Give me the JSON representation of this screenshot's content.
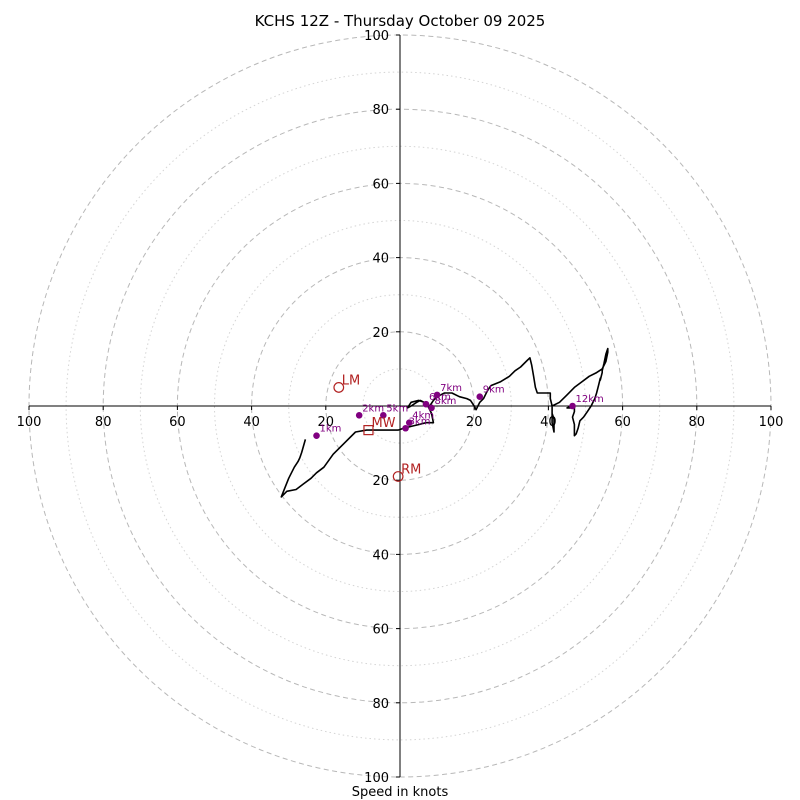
{
  "chart_data": {
    "type": "hodograph",
    "title": "KCHS 12Z - Thursday October 09 2025",
    "xlabel": "Speed in knots",
    "units": "knots",
    "max_speed": 100,
    "ring_labels": [
      "20",
      "40",
      "60",
      "80",
      "100"
    ],
    "rings_major": [
      20,
      40,
      60,
      80,
      100
    ],
    "rings_minor": [
      10,
      30,
      50,
      70,
      90
    ],
    "axis_tick_values": {
      "x_left": [
        100,
        80,
        60,
        40,
        20
      ],
      "x_right": [
        20,
        40,
        60,
        80,
        100
      ],
      "y_up": [
        20,
        40,
        60,
        80,
        100
      ],
      "y_down": [
        20,
        40,
        60,
        80,
        100
      ]
    },
    "trace": [
      [
        -25.5,
        -9
      ],
      [
        -26.5,
        -12.5
      ],
      [
        -27,
        -14
      ],
      [
        -27.5,
        -15
      ],
      [
        -28.5,
        -16.5
      ],
      [
        -30,
        -19.5
      ],
      [
        -31,
        -22
      ],
      [
        -32,
        -24.5
      ],
      [
        -30.5,
        -23
      ],
      [
        -28,
        -22.5
      ],
      [
        -26,
        -21
      ],
      [
        -24,
        -19.5
      ],
      [
        -22.5,
        -18
      ],
      [
        -20.5,
        -16.5
      ],
      [
        -18,
        -13
      ],
      [
        -15,
        -10
      ],
      [
        -12,
        -7
      ],
      [
        -9,
        -6.5
      ],
      [
        -5.5,
        -6.5
      ],
      [
        -3,
        -6.5
      ],
      [
        -0.5,
        -6.5
      ],
      [
        1,
        -6
      ],
      [
        3,
        -5.5
      ],
      [
        5,
        -5
      ],
      [
        7,
        -4.5
      ],
      [
        9,
        -4.5
      ],
      [
        8.5,
        -2
      ],
      [
        8,
        -1
      ],
      [
        7.5,
        0
      ],
      [
        6.5,
        1
      ],
      [
        5.5,
        1.5
      ],
      [
        4.5,
        1
      ],
      [
        3,
        0
      ],
      [
        2,
        -0.5
      ],
      [
        3,
        1
      ],
      [
        5,
        1.5
      ],
      [
        6.5,
        1
      ],
      [
        8,
        0
      ],
      [
        9,
        1.5
      ],
      [
        10,
        2.5
      ],
      [
        12,
        3.5
      ],
      [
        14,
        3.5
      ],
      [
        16,
        2.5
      ],
      [
        18,
        2
      ],
      [
        19,
        1.5
      ],
      [
        20,
        0
      ],
      [
        20.5,
        -1
      ],
      [
        21,
        0
      ],
      [
        21.5,
        1
      ],
      [
        22.5,
        2
      ],
      [
        23.5,
        4
      ],
      [
        24.5,
        5.5
      ],
      [
        27,
        6.5
      ],
      [
        29.5,
        8
      ],
      [
        31,
        9.5
      ],
      [
        32.5,
        10.5
      ],
      [
        34,
        12
      ],
      [
        35,
        13
      ],
      [
        35.5,
        11
      ],
      [
        36,
        8
      ],
      [
        36.5,
        5
      ],
      [
        37,
        3.5
      ],
      [
        38.5,
        3.5
      ],
      [
        40.5,
        3.5
      ],
      [
        40.5,
        2
      ],
      [
        41,
        0
      ],
      [
        41,
        -2
      ],
      [
        41.5,
        -3.5
      ],
      [
        41.5,
        -7
      ],
      [
        41,
        -4.5
      ],
      [
        41,
        -2
      ],
      [
        41,
        0
      ],
      [
        43,
        1
      ],
      [
        45,
        3
      ],
      [
        47,
        5
      ],
      [
        49,
        6.5
      ],
      [
        51,
        8
      ],
      [
        53,
        9
      ],
      [
        54.5,
        10
      ],
      [
        55.5,
        12
      ],
      [
        56,
        14.5
      ],
      [
        56,
        15.5
      ],
      [
        55.5,
        14
      ],
      [
        55,
        11.5
      ],
      [
        54.5,
        9.5
      ],
      [
        54.5,
        9
      ],
      [
        54,
        7
      ],
      [
        54,
        7.5
      ],
      [
        53.5,
        5.5
      ],
      [
        53,
        3.5
      ],
      [
        52.5,
        2
      ],
      [
        51.5,
        0
      ],
      [
        50.5,
        -1.5
      ],
      [
        49.5,
        -3
      ],
      [
        48.5,
        -4
      ],
      [
        48,
        -6
      ],
      [
        47.5,
        -7.5
      ],
      [
        47,
        -8
      ],
      [
        47,
        -7
      ],
      [
        47,
        -5
      ],
      [
        46.5,
        -3
      ],
      [
        47,
        -1.5
      ],
      [
        47,
        0
      ],
      [
        47,
        -0.5
      ],
      [
        46,
        -0.5
      ],
      [
        45,
        -0.5
      ],
      [
        46,
        0
      ]
    ],
    "height_markers": [
      {
        "label": "1km",
        "u": -22.5,
        "v": -8
      },
      {
        "label": "2km",
        "u": -11,
        "v": -2.5
      },
      {
        "label": "5km",
        "u": -4.5,
        "v": -2.5
      },
      {
        "label": "3km",
        "u": 1.5,
        "v": -6
      },
      {
        "label": "4km",
        "u": 2.5,
        "v": -4.5
      },
      {
        "label": "6km",
        "u": 7,
        "v": 0.5
      },
      {
        "label": "7km",
        "u": 10,
        "v": 3
      },
      {
        "label": "8km",
        "u": 8.5,
        "v": -0.5
      },
      {
        "label": "9km",
        "u": 21.5,
        "v": 2.5
      },
      {
        "label": "12km",
        "u": 46.5,
        "v": 0
      }
    ],
    "storm_motion": [
      {
        "label": "LM",
        "u": -16.5,
        "v": 5,
        "marker": "circle"
      },
      {
        "label": "RM",
        "u": -0.5,
        "v": -19,
        "marker": "circle"
      },
      {
        "label": "MW",
        "u": -8.5,
        "v": -6.5,
        "marker": "square"
      }
    ],
    "colors": {
      "trace": "#000000",
      "markers": "#800080",
      "storm_motion": "#b22222",
      "rings": "#b8b8b8",
      "axes": "#000000"
    }
  }
}
